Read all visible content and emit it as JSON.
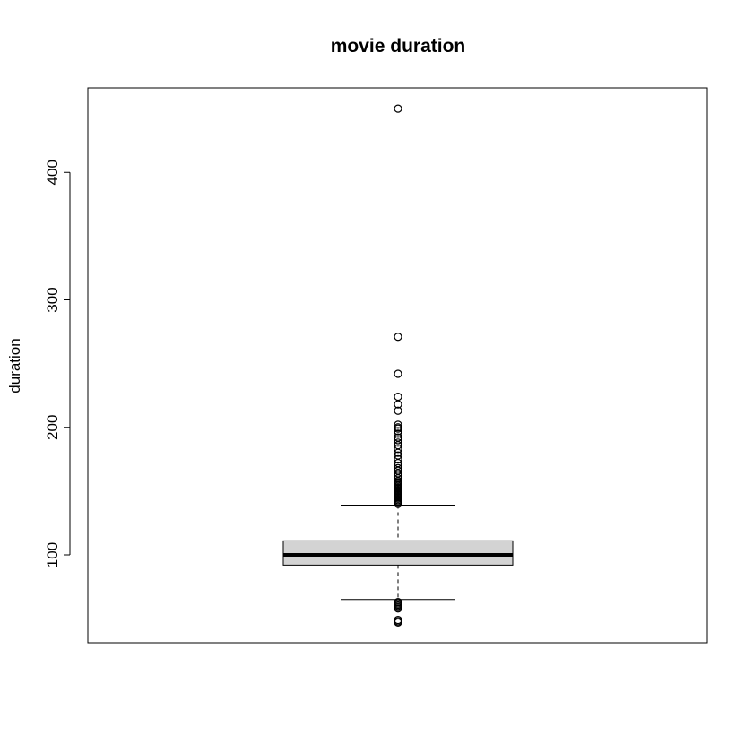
{
  "chart_data": {
    "type": "boxplot",
    "title": "movie duration",
    "xlabel": "",
    "ylabel": "duration",
    "ylim": [
      40,
      455
    ],
    "y_ticks": [
      100,
      200,
      300,
      400
    ],
    "y_tick_labels": [
      "100",
      "200",
      "300",
      "400"
    ],
    "series": [
      {
        "name": "duration",
        "whisker_low": 65,
        "q1": 92,
        "median": 100,
        "q3": 111,
        "whisker_high": 139,
        "outliers": [
          47,
          48,
          49,
          58,
          59,
          60,
          61,
          62,
          63,
          140,
          141,
          142,
          143,
          144,
          145,
          146,
          147,
          148,
          149,
          150,
          151,
          152,
          153,
          154,
          155,
          156,
          157,
          158,
          160,
          162,
          164,
          166,
          168,
          170,
          172,
          175,
          178,
          180,
          183,
          186,
          188,
          190,
          192,
          195,
          197,
          199,
          200,
          202,
          213,
          218,
          224,
          242,
          271,
          450
        ]
      }
    ],
    "box_fill": "#d3d3d3",
    "line_color": "#000000",
    "grid": false,
    "legend": "none"
  }
}
